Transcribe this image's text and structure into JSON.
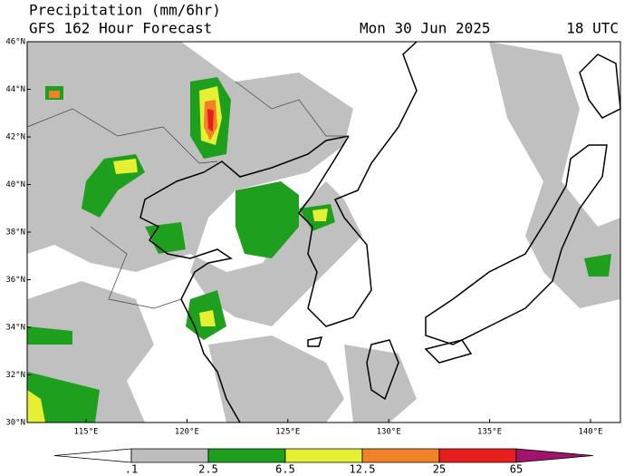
{
  "header": {
    "title": "Precipitation (mm/6hr)",
    "subtitle": "GFS 162 Hour Forecast",
    "valid_date": "Mon 30 Jun 2025",
    "valid_time": "18 UTC"
  },
  "lat_labels": [
    "46°N",
    "44°N",
    "42°N",
    "40°N",
    "38°N",
    "36°N",
    "34°N",
    "32°N",
    "30°N"
  ],
  "lon_labels": [
    "115°E",
    "120°E",
    "125°E",
    "130°E",
    "135°E",
    "140°E"
  ],
  "colorbar": {
    "labels": [
      ".1",
      "2.5",
      "6.5",
      "12.5",
      "25",
      "65"
    ],
    "colors": [
      "#ffffff",
      "#bebebe",
      "#1ea01e",
      "#e6f032",
      "#f08228",
      "#e61e1e",
      "#a0146e"
    ]
  }
}
